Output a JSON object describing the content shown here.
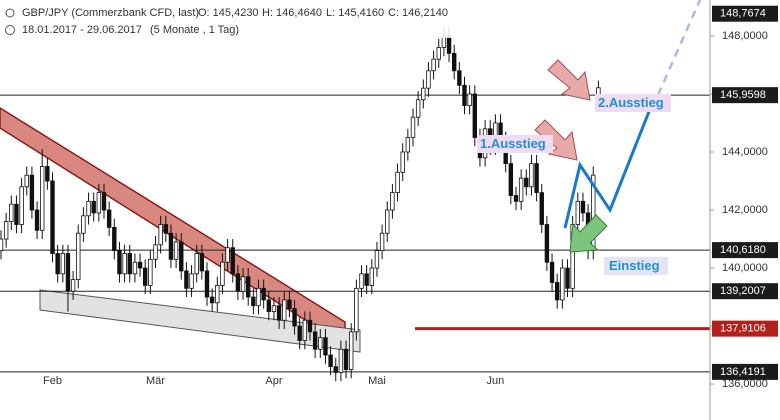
{
  "chart_data": {
    "type": "candlestick",
    "title": "GBP/JPY (Commerzbank CFD, last)",
    "header_values": [
      "O: 145,4230",
      "H: 146,4640",
      "L: 145,4160",
      "C: 146,2140"
    ],
    "subtitle": "18.01.2017 - 29.06.2017",
    "period": "(5 Monate , 1 Tag)",
    "categories": [
      null,
      null,
      null,
      null,
      null,
      null,
      null,
      null,
      null,
      null,
      "Feb",
      null,
      null,
      null,
      null,
      null,
      null,
      null,
      null,
      null,
      null,
      null,
      null,
      null,
      null,
      null,
      null,
      null,
      null,
      null,
      "Mär",
      null,
      null,
      null,
      null,
      null,
      null,
      null,
      null,
      null,
      null,
      null,
      null,
      null,
      null,
      null,
      null,
      null,
      null,
      null,
      null,
      null,
      null,
      "Apr",
      null,
      null,
      null,
      null,
      null,
      null,
      null,
      null,
      null,
      null,
      null,
      null,
      null,
      null,
      null,
      null,
      null,
      null,
      null,
      "Mai",
      null,
      null,
      null,
      null,
      null,
      null,
      null,
      null,
      null,
      null,
      null,
      null,
      null,
      null,
      null,
      null,
      null,
      null,
      null,
      null,
      null,
      null,
      "Jun",
      null,
      null,
      null,
      null,
      null,
      null,
      null,
      null,
      null,
      null,
      null,
      null,
      null,
      null,
      null,
      null,
      null,
      null,
      null,
      null
    ],
    "open": [
      140.6,
      141.0,
      141.6,
      142.2,
      141.5,
      142.8,
      143.2,
      142.0,
      141.3,
      143.5,
      143.0,
      140.5,
      139.8,
      140.5,
      139.2,
      139.6,
      141.2,
      141.8,
      142.3,
      141.9,
      142.6,
      142.0,
      141.4,
      140.6,
      139.8,
      140.5,
      139.8,
      140.2,
      140.0,
      139.4,
      140.3,
      140.8,
      141.5,
      141.2,
      140.3,
      140.9,
      139.9,
      139.3,
      139.8,
      140.5,
      139.9,
      139.0,
      138.8,
      139.4,
      140.2,
      140.7,
      139.8,
      139.2,
      139.7,
      139.0,
      138.7,
      139.3,
      138.9,
      138.5,
      138.7,
      138.2,
      138.9,
      138.6,
      138.0,
      137.5,
      138.2,
      137.8,
      137.2,
      137.6,
      137.0,
      136.6,
      136.4,
      137.2,
      136.5,
      137.8,
      139.3,
      139.8,
      139.4,
      140.0,
      140.6,
      141.2,
      142.0,
      142.6,
      143.3,
      144.0,
      144.5,
      145.2,
      145.8,
      146.2,
      146.8,
      147.2,
      147.6,
      148.0,
      147.4,
      146.8,
      146.3,
      145.6,
      146.0,
      144.5,
      143.8,
      144.8,
      144.2,
      145.0,
      144.4,
      143.6,
      142.5,
      142.3,
      143.1,
      142.8,
      143.6,
      142.6,
      141.5,
      140.2,
      139.5,
      138.9,
      140.0,
      139.3,
      141.5,
      142.3,
      141.9,
      140.6,
      145.423
    ],
    "high": [
      141.3,
      141.9,
      142.5,
      142.5,
      143.1,
      143.5,
      143.5,
      142.3,
      144.1,
      143.8,
      143.3,
      140.8,
      140.8,
      140.8,
      139.9,
      141.5,
      142.1,
      142.6,
      142.6,
      142.9,
      142.9,
      142.3,
      141.7,
      140.9,
      140.8,
      140.8,
      140.5,
      140.5,
      140.3,
      140.6,
      141.1,
      141.8,
      141.8,
      141.5,
      141.2,
      141.2,
      140.2,
      140.1,
      140.8,
      140.8,
      140.2,
      139.3,
      139.7,
      140.5,
      141.0,
      141.0,
      140.1,
      140.0,
      140.0,
      139.3,
      139.6,
      139.6,
      139.2,
      139.0,
      139.0,
      139.2,
      139.2,
      138.9,
      138.3,
      138.5,
      138.5,
      138.1,
      137.9,
      137.9,
      137.3,
      136.9,
      137.5,
      137.5,
      138.1,
      139.6,
      140.1,
      140.1,
      140.3,
      140.9,
      141.5,
      142.3,
      142.9,
      143.6,
      144.3,
      144.8,
      145.5,
      146.1,
      146.5,
      147.1,
      147.5,
      147.9,
      148.3,
      148.3,
      147.7,
      147.1,
      146.6,
      146.3,
      146.3,
      144.8,
      145.1,
      145.1,
      145.3,
      145.3,
      144.7,
      143.9,
      142.8,
      143.4,
      143.4,
      143.9,
      143.9,
      142.9,
      141.8,
      140.5,
      139.8,
      140.3,
      140.3,
      141.8,
      142.6,
      142.6,
      142.2,
      143.5,
      146.464
    ],
    "low": [
      140.3,
      140.7,
      141.3,
      141.2,
      141.2,
      142.5,
      141.7,
      141.0,
      141.0,
      142.7,
      140.2,
      139.5,
      139.5,
      138.5,
      138.9,
      139.3,
      140.9,
      141.5,
      141.6,
      141.6,
      141.7,
      141.1,
      140.3,
      139.5,
      139.5,
      139.5,
      139.5,
      139.7,
      139.1,
      139.1,
      140.0,
      140.5,
      140.9,
      140.0,
      140.0,
      139.6,
      139.0,
      139.0,
      139.5,
      139.6,
      138.7,
      138.5,
      138.5,
      139.1,
      139.9,
      139.5,
      138.9,
      138.9,
      138.7,
      138.4,
      138.4,
      138.6,
      138.2,
      138.2,
      137.9,
      137.9,
      138.3,
      137.7,
      137.2,
      137.2,
      137.5,
      136.9,
      136.9,
      136.7,
      136.3,
      136.1,
      136.1,
      136.2,
      136.2,
      137.5,
      139.0,
      139.1,
      139.1,
      139.7,
      140.3,
      140.9,
      141.7,
      142.3,
      143.0,
      143.7,
      144.2,
      144.9,
      145.5,
      145.9,
      146.5,
      146.9,
      147.3,
      147.1,
      146.5,
      146.0,
      145.3,
      145.3,
      144.2,
      143.5,
      143.5,
      143.9,
      143.9,
      144.1,
      143.3,
      142.2,
      142.0,
      142.0,
      142.5,
      142.5,
      142.3,
      141.2,
      139.9,
      139.2,
      138.6,
      138.6,
      139.0,
      139.0,
      141.2,
      141.6,
      140.3,
      140.3,
      145.416
    ],
    "close": [
      141.0,
      141.6,
      142.2,
      141.5,
      142.8,
      143.2,
      142.0,
      141.3,
      143.5,
      143.0,
      140.5,
      139.8,
      140.5,
      139.2,
      139.6,
      141.2,
      141.8,
      142.3,
      141.9,
      142.6,
      142.0,
      141.4,
      140.6,
      139.8,
      140.5,
      139.8,
      140.2,
      140.0,
      139.4,
      140.3,
      140.8,
      141.5,
      141.2,
      140.3,
      140.9,
      139.9,
      139.3,
      139.8,
      140.5,
      139.9,
      139.0,
      138.8,
      139.4,
      140.2,
      140.7,
      139.8,
      139.2,
      139.7,
      139.0,
      138.7,
      139.3,
      138.9,
      138.5,
      138.7,
      138.2,
      138.9,
      138.6,
      138.0,
      137.5,
      138.2,
      137.8,
      137.2,
      137.6,
      137.0,
      136.6,
      136.4,
      137.2,
      136.5,
      137.8,
      139.3,
      139.8,
      139.4,
      140.0,
      140.6,
      141.2,
      142.0,
      142.6,
      143.3,
      144.0,
      144.5,
      145.2,
      145.8,
      146.2,
      146.8,
      147.2,
      147.6,
      148.0,
      147.4,
      146.8,
      146.3,
      145.6,
      146.0,
      144.5,
      143.8,
      144.8,
      144.2,
      145.0,
      144.4,
      143.6,
      142.5,
      142.3,
      143.1,
      142.8,
      143.6,
      142.6,
      141.5,
      140.2,
      139.5,
      138.9,
      140.0,
      139.3,
      141.5,
      142.3,
      141.9,
      140.6,
      143.2,
      146.214
    ],
    "up_color": "#ffffff",
    "down_color": "#111111",
    "ylim": [
      135.45,
      149.24
    ],
    "yticks": [
      {
        "value": 136,
        "label": "136,0000"
      },
      {
        "value": 138,
        "label": "138,0000"
      },
      {
        "value": 140,
        "label": "140,0000"
      },
      {
        "value": 142,
        "label": "142,0000"
      },
      {
        "value": 144,
        "label": "144,0000"
      },
      {
        "value": 146,
        "label": "146,0000"
      },
      {
        "value": 148,
        "label": "148,0000"
      }
    ],
    "levels": [
      {
        "value": 148.7674,
        "label": "148,7674",
        "line": "none",
        "color": "#1b1b1b"
      },
      {
        "value": 145.9598,
        "label": "145,9598",
        "line": "full",
        "color": "#1b1b1b"
      },
      {
        "value": 140.618,
        "label": "140,6180",
        "line": "full",
        "color": "#1b1b1b"
      },
      {
        "value": 139.2007,
        "label": "139,2007",
        "line": "full",
        "color": "#1b1b1b"
      },
      {
        "value": 137.9106,
        "label": "137,9106",
        "line": "partial",
        "color": "#b3201c"
      },
      {
        "value": 136.4191,
        "label": "136,4191",
        "line": "full",
        "color": "#1b1b1b"
      }
    ],
    "annotations": [
      "1.Ausstieg",
      "2.Ausstieg",
      "Einstieg"
    ]
  }
}
